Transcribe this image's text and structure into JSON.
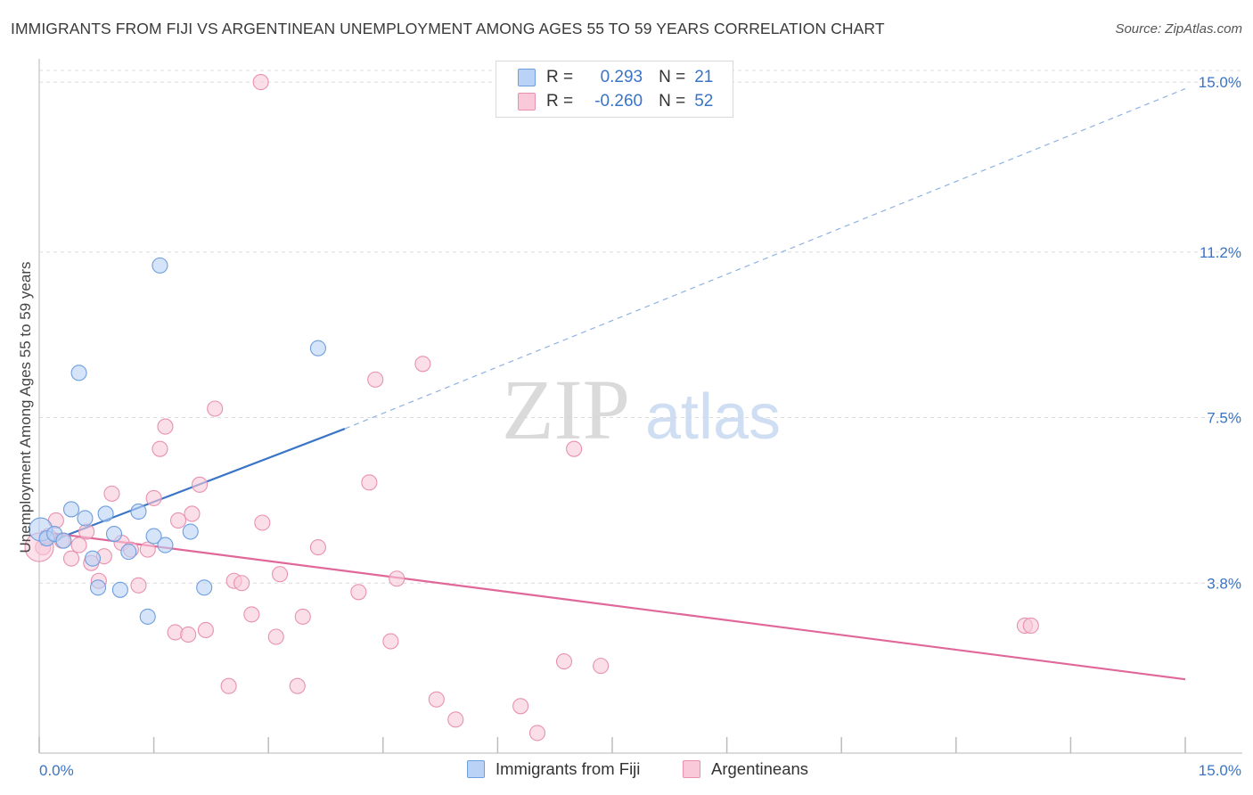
{
  "title": "IMMIGRANTS FROM FIJI VS ARGENTINEAN UNEMPLOYMENT AMONG AGES 55 TO 59 YEARS CORRELATION CHART",
  "source": "Source: ZipAtlas.com",
  "watermark": {
    "zip": "ZIP",
    "atlas": "atlas"
  },
  "legend": {
    "fiji": {
      "r_label": "R =",
      "r_value": "0.293",
      "n_label": "N =",
      "n_value": "21"
    },
    "arg": {
      "r_label": "R =",
      "r_value": "-0.260",
      "n_label": "N =",
      "n_value": "52"
    }
  },
  "bottom_legend": {
    "fiji": "Immigrants from Fiji",
    "arg": "Argentineans"
  },
  "colors": {
    "fiji_fill": "#b9d2f5",
    "fiji_stroke": "#6d9ede",
    "fiji_line": "#3a74c6",
    "arg_fill": "#f9c9d9",
    "arg_stroke": "#e891ae",
    "arg_line": "#e0679a",
    "grid": "#dcdcdc",
    "tick_label": "#3a74c6"
  },
  "chart_data": {
    "type": "scatter",
    "title": "IMMIGRANTS FROM FIJI VS ARGENTINEAN UNEMPLOYMENT AMONG AGES 55 TO 59 YEARS CORRELATION CHART",
    "xlabel": "",
    "ylabel": "Unemployment Among Ages 55 to 59 years",
    "xlim": [
      0,
      15
    ],
    "ylim": [
      0,
      15.4
    ],
    "x_tick_labels": [
      "0.0%",
      "15.0%"
    ],
    "y_ticks": [
      3.8,
      7.5,
      11.2,
      15.0
    ],
    "y_tick_labels": [
      "3.8%",
      "7.5%",
      "11.2%",
      "15.0%"
    ],
    "grid": true,
    "legend_placement": "top-center",
    "series": [
      {
        "name": "Immigrants from Fiji",
        "r": 0.293,
        "n": 21,
        "points": [
          {
            "x": 0.02,
            "y": 5.0
          },
          {
            "x": 0.1,
            "y": 4.8
          },
          {
            "x": 0.2,
            "y": 4.9
          },
          {
            "x": 0.32,
            "y": 4.75
          },
          {
            "x": 0.42,
            "y": 5.45
          },
          {
            "x": 0.52,
            "y": 8.5
          },
          {
            "x": 0.6,
            "y": 5.25
          },
          {
            "x": 0.7,
            "y": 4.35
          },
          {
            "x": 0.77,
            "y": 3.7
          },
          {
            "x": 0.87,
            "y": 5.35
          },
          {
            "x": 0.98,
            "y": 4.9
          },
          {
            "x": 1.06,
            "y": 3.65
          },
          {
            "x": 1.17,
            "y": 4.5
          },
          {
            "x": 1.3,
            "y": 5.4
          },
          {
            "x": 1.42,
            "y": 3.05
          },
          {
            "x": 1.5,
            "y": 4.85
          },
          {
            "x": 1.58,
            "y": 10.9
          },
          {
            "x": 1.65,
            "y": 4.65
          },
          {
            "x": 1.98,
            "y": 4.95
          },
          {
            "x": 2.16,
            "y": 3.7
          },
          {
            "x": 3.65,
            "y": 9.05
          }
        ],
        "trend": {
          "x0": 0.02,
          "y0": 4.65,
          "x1": 4.0,
          "y1": 7.25,
          "x_dash_end": 15.0,
          "y_dash_end": 14.85
        }
      },
      {
        "name": "Argentineans",
        "r": -0.26,
        "n": 52,
        "points": [
          {
            "x": 0.05,
            "y": 4.6
          },
          {
            "x": 0.12,
            "y": 4.85
          },
          {
            "x": 0.22,
            "y": 5.2
          },
          {
            "x": 0.3,
            "y": 4.75
          },
          {
            "x": 0.42,
            "y": 4.35
          },
          {
            "x": 0.52,
            "y": 4.65
          },
          {
            "x": 0.62,
            "y": 4.95
          },
          {
            "x": 0.68,
            "y": 4.25
          },
          {
            "x": 0.78,
            "y": 3.85
          },
          {
            "x": 0.85,
            "y": 4.4
          },
          {
            "x": 0.95,
            "y": 5.8
          },
          {
            "x": 1.08,
            "y": 4.7
          },
          {
            "x": 1.2,
            "y": 4.55
          },
          {
            "x": 1.3,
            "y": 3.75
          },
          {
            "x": 1.42,
            "y": 4.55
          },
          {
            "x": 1.5,
            "y": 5.7
          },
          {
            "x": 1.58,
            "y": 6.8
          },
          {
            "x": 1.65,
            "y": 7.3
          },
          {
            "x": 1.78,
            "y": 2.7
          },
          {
            "x": 1.82,
            "y": 5.2
          },
          {
            "x": 1.95,
            "y": 2.65
          },
          {
            "x": 2.0,
            "y": 5.35
          },
          {
            "x": 2.1,
            "y": 6.0
          },
          {
            "x": 2.18,
            "y": 2.75
          },
          {
            "x": 2.3,
            "y": 7.7
          },
          {
            "x": 2.48,
            "y": 1.5
          },
          {
            "x": 2.55,
            "y": 3.85
          },
          {
            "x": 2.65,
            "y": 3.8
          },
          {
            "x": 2.78,
            "y": 3.1
          },
          {
            "x": 2.9,
            "y": 15.0
          },
          {
            "x": 2.92,
            "y": 5.15
          },
          {
            "x": 3.1,
            "y": 2.6
          },
          {
            "x": 3.15,
            "y": 4.0
          },
          {
            "x": 3.38,
            "y": 1.5
          },
          {
            "x": 3.45,
            "y": 3.05
          },
          {
            "x": 3.65,
            "y": 4.6
          },
          {
            "x": 4.18,
            "y": 3.6
          },
          {
            "x": 4.32,
            "y": 6.05
          },
          {
            "x": 4.4,
            "y": 8.35
          },
          {
            "x": 4.6,
            "y": 2.5
          },
          {
            "x": 4.68,
            "y": 3.9
          },
          {
            "x": 5.02,
            "y": 8.7
          },
          {
            "x": 5.2,
            "y": 1.2
          },
          {
            "x": 5.45,
            "y": 0.75
          },
          {
            "x": 6.3,
            "y": 1.05
          },
          {
            "x": 6.52,
            "y": 0.45
          },
          {
            "x": 6.87,
            "y": 2.05
          },
          {
            "x": 7.0,
            "y": 6.8
          },
          {
            "x": 7.35,
            "y": 1.95
          },
          {
            "x": 12.9,
            "y": 2.85
          },
          {
            "x": 12.98,
            "y": 2.85
          },
          {
            "x": 0.0,
            "y": 4.6
          }
        ],
        "trend": {
          "x0": 0.02,
          "y0": 4.95,
          "x1": 15.0,
          "y1": 1.65
        }
      }
    ]
  }
}
